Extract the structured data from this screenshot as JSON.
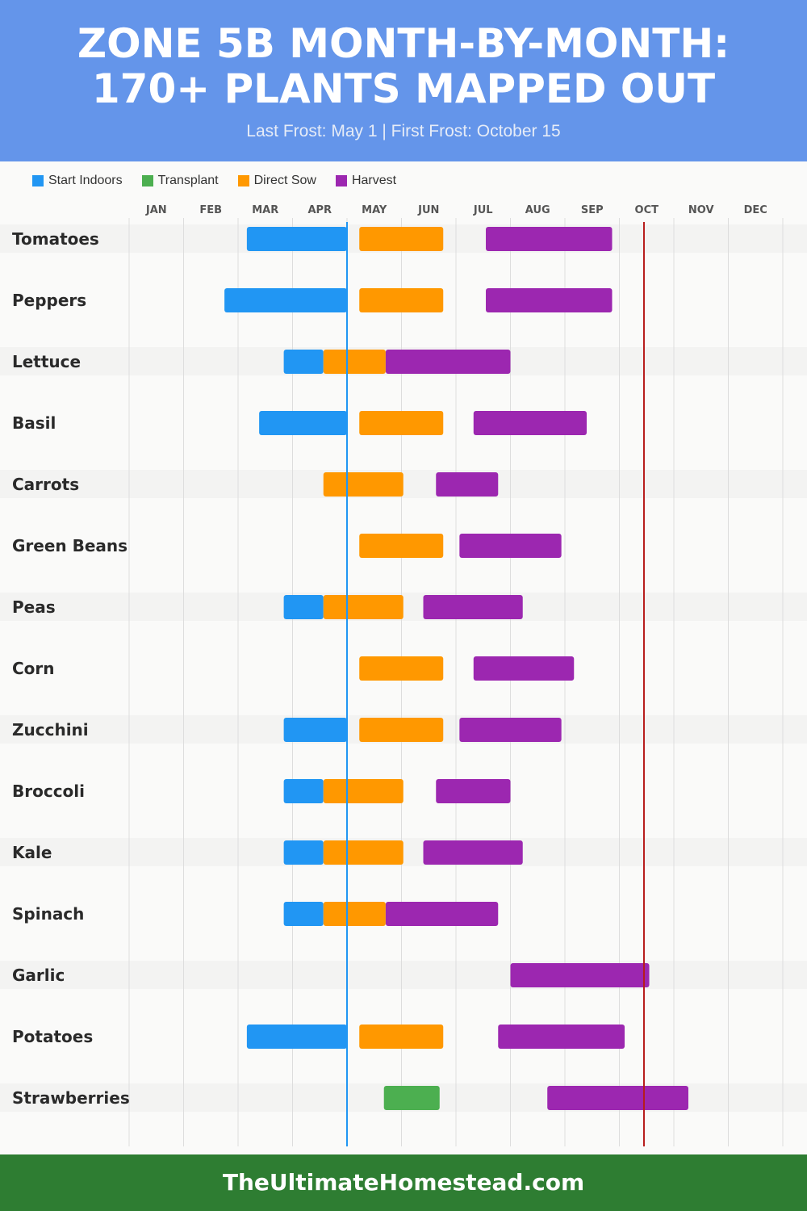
{
  "header": {
    "title": "ZONE 5B MONTH-BY-MONTH:\n170+ PLANTS MAPPED OUT",
    "subtitle": "Last Frost: May 1 | First Frost: October 15"
  },
  "legend": [
    {
      "label": "Start Indoors",
      "color": "#2196f3"
    },
    {
      "label": "Transplant",
      "color": "#4caf50"
    },
    {
      "label": "Direct Sow",
      "color": "#ff9800"
    },
    {
      "label": "Harvest",
      "color": "#9c27b0"
    }
  ],
  "footer": {
    "text": "TheUltimateHomestead.com"
  },
  "chart_data": {
    "type": "gantt",
    "months": [
      "JAN",
      "FEB",
      "MAR",
      "APR",
      "MAY",
      "JUN",
      "JUL",
      "AUG",
      "SEP",
      "OCT",
      "NOV",
      "DEC"
    ],
    "markers": [
      {
        "label": "Last Frost",
        "date": "May 1",
        "color": "#2196f3"
      },
      {
        "label": "First Frost",
        "date": "Oct 15",
        "color": "#b71c1c"
      }
    ],
    "rows": [
      {
        "name": "Tomatoes",
        "bars": [
          {
            "phase": "Start Indoors",
            "start": "Mar 6",
            "end": "May 1"
          },
          {
            "phase": "Direct Sow",
            "start": "May 8",
            "end": "Jun 24"
          },
          {
            "phase": "Harvest",
            "start": "Jul 18",
            "end": "Sep 27"
          }
        ]
      },
      {
        "name": "Peppers",
        "bars": [
          {
            "phase": "Start Indoors",
            "start": "Feb 22",
            "end": "May 1"
          },
          {
            "phase": "Direct Sow",
            "start": "May 8",
            "end": "Jun 24"
          },
          {
            "phase": "Harvest",
            "start": "Jul 18",
            "end": "Sep 27"
          }
        ]
      },
      {
        "name": "Lettuce",
        "bars": [
          {
            "phase": "Start Indoors",
            "start": "Mar 27",
            "end": "Apr 18"
          },
          {
            "phase": "Direct Sow",
            "start": "Apr 18",
            "end": "May 23"
          },
          {
            "phase": "Harvest",
            "start": "May 23",
            "end": "Aug 1"
          }
        ]
      },
      {
        "name": "Basil",
        "bars": [
          {
            "phase": "Start Indoors",
            "start": "Mar 13",
            "end": "May 1"
          },
          {
            "phase": "Direct Sow",
            "start": "May 8",
            "end": "Jun 24"
          },
          {
            "phase": "Harvest",
            "start": "Jul 11",
            "end": "Sep 13"
          }
        ]
      },
      {
        "name": "Carrots",
        "bars": [
          {
            "phase": "Direct Sow",
            "start": "Apr 18",
            "end": "Jun 2"
          },
          {
            "phase": "Harvest",
            "start": "Jun 20",
            "end": "Jul 25"
          }
        ]
      },
      {
        "name": "Green Beans",
        "bars": [
          {
            "phase": "Direct Sow",
            "start": "May 8",
            "end": "Jun 24"
          },
          {
            "phase": "Harvest",
            "start": "Jul 3",
            "end": "Aug 30"
          }
        ]
      },
      {
        "name": "Peas",
        "bars": [
          {
            "phase": "Start Indoors",
            "start": "Mar 27",
            "end": "Apr 18"
          },
          {
            "phase": "Direct Sow",
            "start": "Apr 18",
            "end": "Jun 2"
          },
          {
            "phase": "Harvest",
            "start": "Jun 13",
            "end": "Aug 8"
          }
        ]
      },
      {
        "name": "Corn",
        "bars": [
          {
            "phase": "Direct Sow",
            "start": "May 8",
            "end": "Jun 24"
          },
          {
            "phase": "Harvest",
            "start": "Jul 11",
            "end": "Sep 6"
          }
        ]
      },
      {
        "name": "Zucchini",
        "bars": [
          {
            "phase": "Start Indoors",
            "start": "Mar 27",
            "end": "May 1"
          },
          {
            "phase": "Direct Sow",
            "start": "May 8",
            "end": "Jun 24"
          },
          {
            "phase": "Harvest",
            "start": "Jul 3",
            "end": "Aug 30"
          }
        ]
      },
      {
        "name": "Broccoli",
        "bars": [
          {
            "phase": "Start Indoors",
            "start": "Mar 27",
            "end": "Apr 18"
          },
          {
            "phase": "Direct Sow",
            "start": "Apr 18",
            "end": "Jun 2"
          },
          {
            "phase": "Harvest",
            "start": "Jun 20",
            "end": "Aug 1"
          }
        ]
      },
      {
        "name": "Kale",
        "bars": [
          {
            "phase": "Start Indoors",
            "start": "Mar 27",
            "end": "Apr 18"
          },
          {
            "phase": "Direct Sow",
            "start": "Apr 18",
            "end": "Jun 2"
          },
          {
            "phase": "Harvest",
            "start": "Jun 13",
            "end": "Aug 8"
          }
        ]
      },
      {
        "name": "Spinach",
        "bars": [
          {
            "phase": "Start Indoors",
            "start": "Mar 27",
            "end": "Apr 18"
          },
          {
            "phase": "Direct Sow",
            "start": "Apr 18",
            "end": "May 23"
          },
          {
            "phase": "Harvest",
            "start": "May 23",
            "end": "Jul 25"
          }
        ]
      },
      {
        "name": "Garlic",
        "bars": [
          {
            "phase": "Harvest",
            "start": "Aug 1",
            "end": "Oct 18"
          }
        ]
      },
      {
        "name": "Potatoes",
        "bars": [
          {
            "phase": "Start Indoors",
            "start": "Mar 6",
            "end": "May 1"
          },
          {
            "phase": "Direct Sow",
            "start": "May 8",
            "end": "Jun 24"
          },
          {
            "phase": "Harvest",
            "start": "Jul 25",
            "end": "Oct 4"
          }
        ]
      },
      {
        "name": "Strawberries",
        "bars": [
          {
            "phase": "Transplant",
            "start": "May 22",
            "end": "Jun 22"
          },
          {
            "phase": "Harvest",
            "start": "Aug 22",
            "end": "Nov 9"
          }
        ]
      }
    ]
  }
}
